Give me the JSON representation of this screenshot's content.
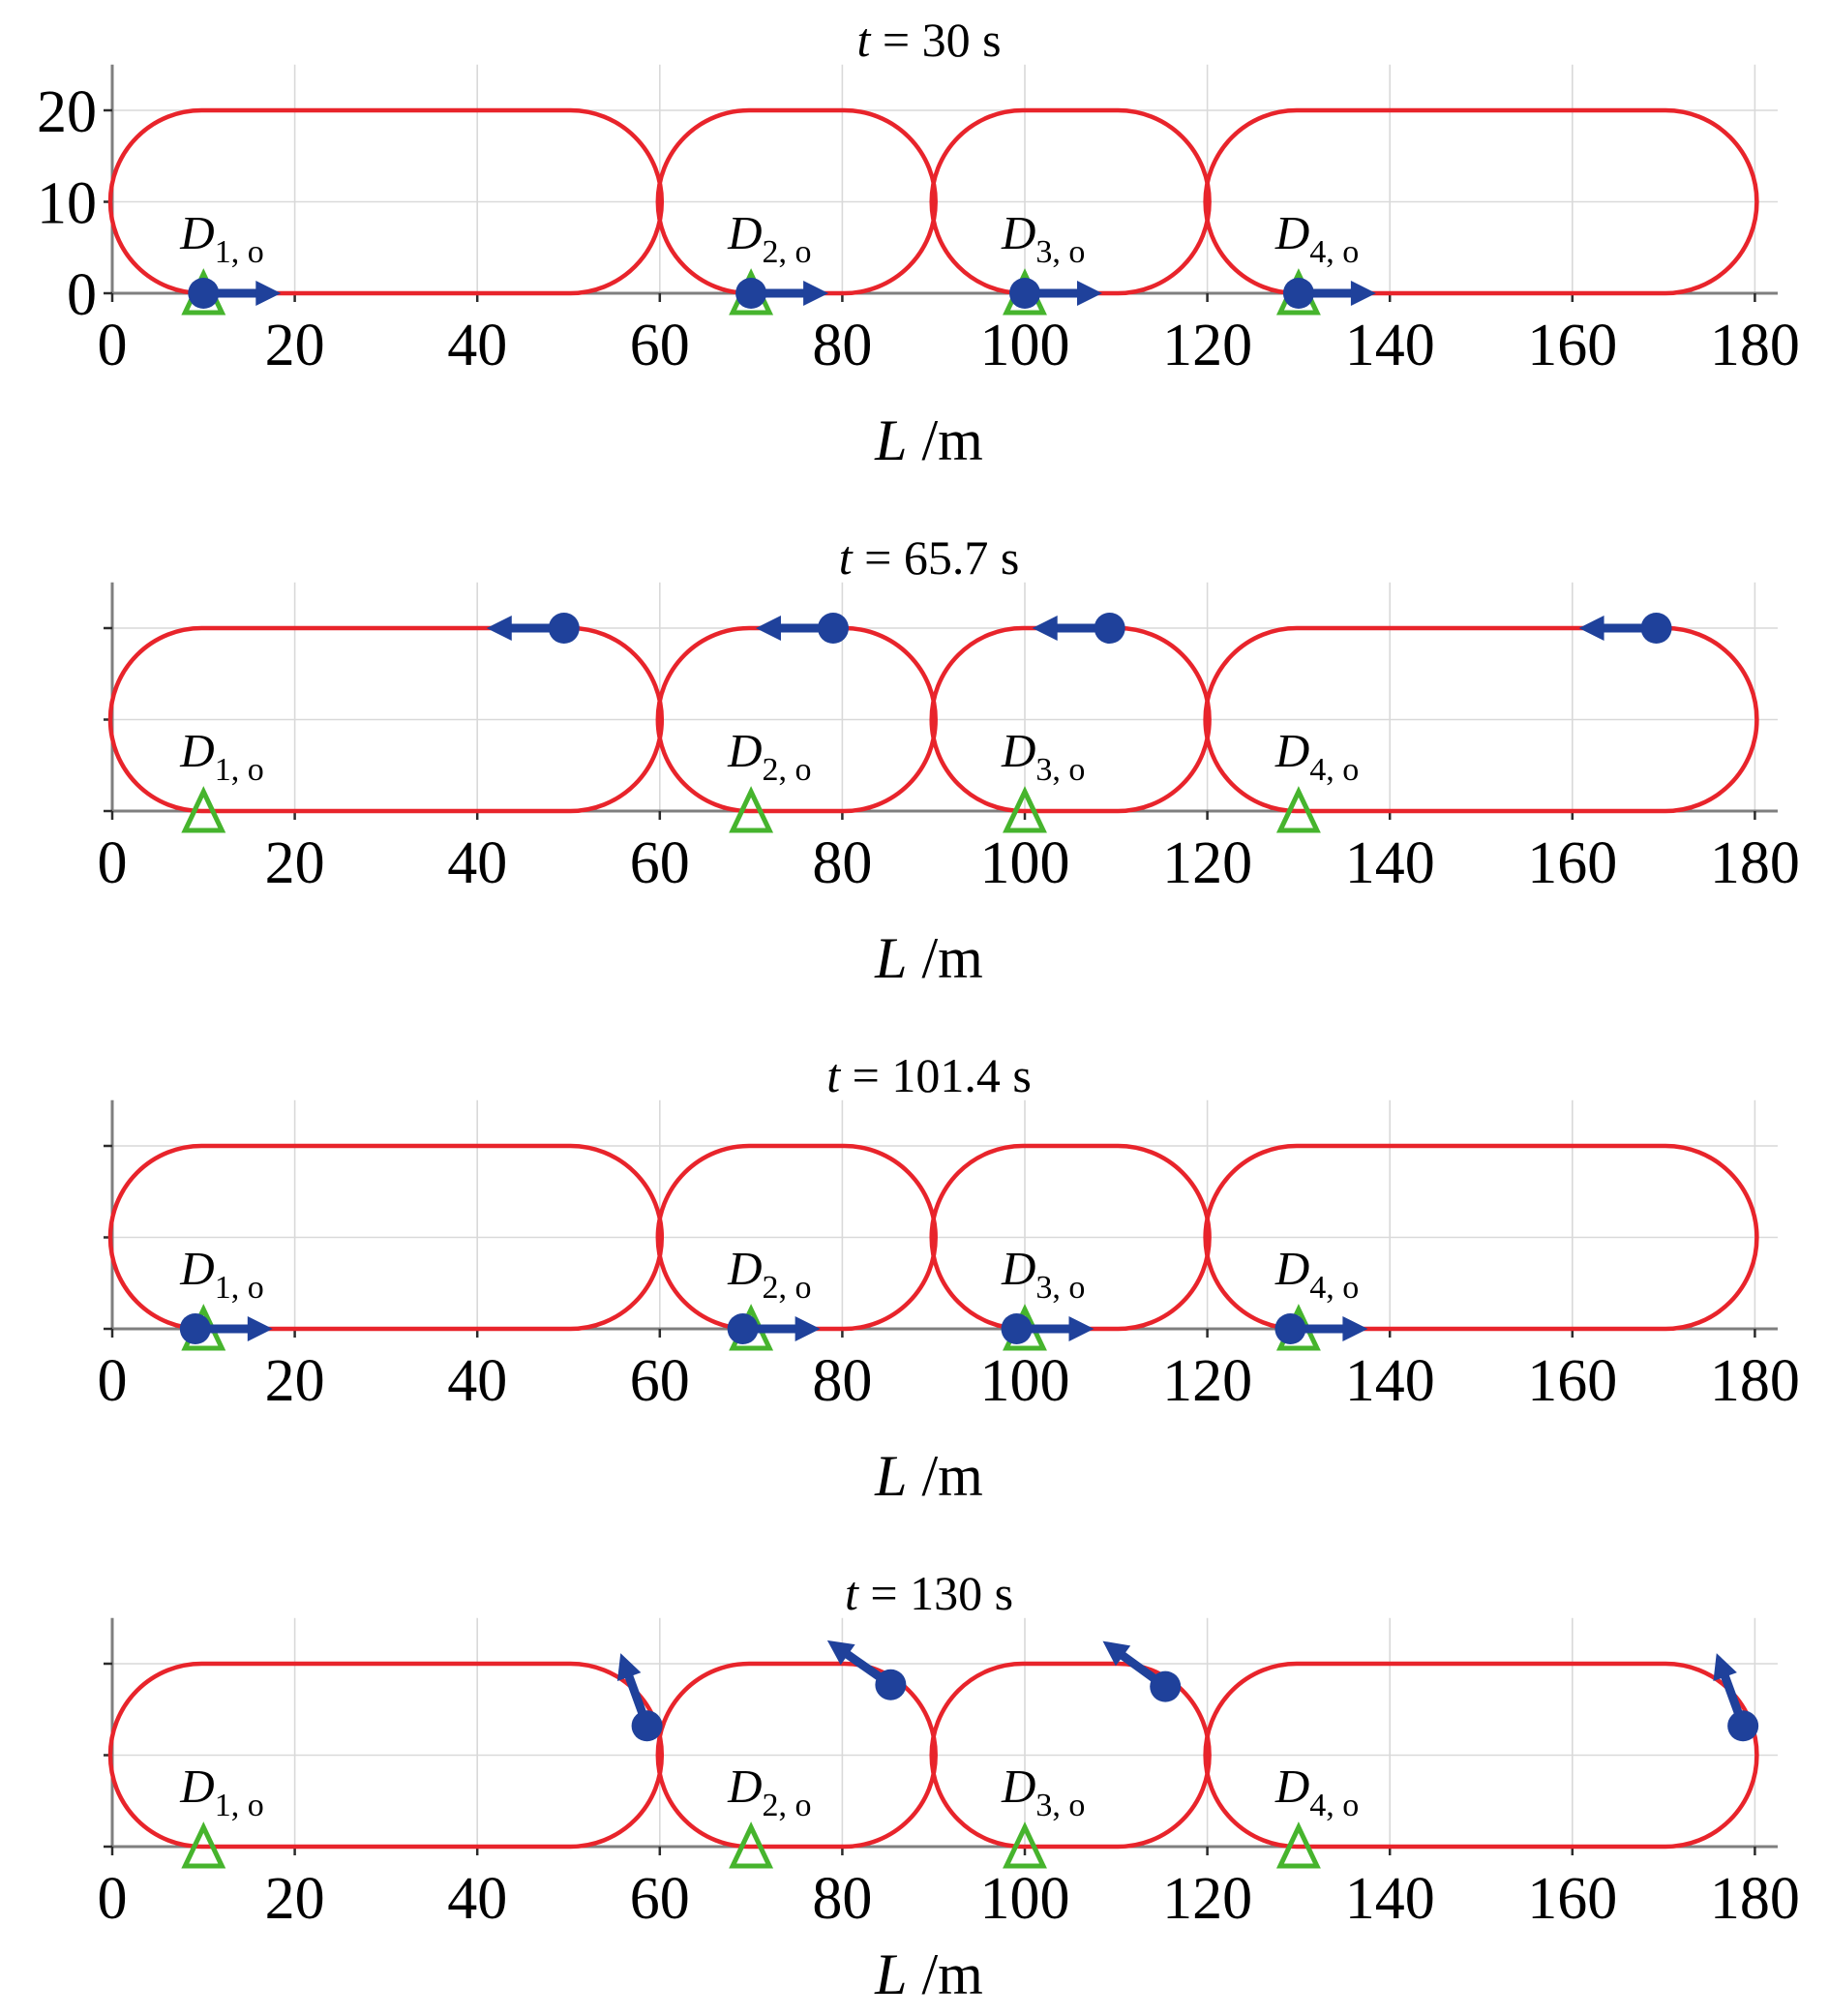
{
  "figure": {
    "background": "#ffffff",
    "description_labels": {
      "time_titles": [
        "t = 30 s",
        "t = 65.7 s",
        "t = 101.4 s",
        "t = 130 s"
      ],
      "axis_label": "L /m"
    }
  },
  "chart_data": {
    "type": "line",
    "layout": {
      "rows": 4,
      "cols": 1,
      "x_min": 0,
      "x_max": 180,
      "x_tick_step": 20,
      "x_ticks": [
        0,
        20,
        40,
        60,
        80,
        100,
        120,
        140,
        160,
        180
      ],
      "y_ticks": [
        0,
        10,
        20
      ],
      "y_max_visible": 25,
      "grid": true,
      "equal_aspect": true
    },
    "colors": {
      "track": "#e8242b",
      "drone": "#1f419b",
      "origin": "#46b42d",
      "grid": "#d9d9d9",
      "spine": "#7f7f7f",
      "tick": "#2b2b2b",
      "text": "#000000",
      "background": "#ffffff"
    },
    "tracks": [
      {
        "x_start": 0,
        "x_end": 60,
        "y_bottom": 0,
        "y_top": 20,
        "end_radius": 10
      },
      {
        "x_start": 60,
        "x_end": 90,
        "y_bottom": 0,
        "y_top": 20,
        "end_radius": 10
      },
      {
        "x_start": 90,
        "x_end": 120,
        "y_bottom": 0,
        "y_top": 20,
        "end_radius": 10
      },
      {
        "x_start": 120,
        "x_end": 180,
        "y_bottom": 0,
        "y_top": 20,
        "end_radius": 10
      }
    ],
    "panels": [
      {
        "title": "t = 30 s",
        "title_symbol": "t",
        "title_rest": " = 30 s",
        "time_s": 30,
        "xlabel": "L /m",
        "xlabel_symbol": "L",
        "xlabel_rest": " /m",
        "show_y_tick_labels": true,
        "origins": [
          {
            "label": "D",
            "subscript": "1, o",
            "x": 10
          },
          {
            "label": "D",
            "subscript": "2, o",
            "x": 70
          },
          {
            "label": "D",
            "subscript": "3, o",
            "x": 100
          },
          {
            "label": "D",
            "subscript": "4, o",
            "x": 130
          }
        ],
        "drones": [
          {
            "id": 1,
            "x": 10,
            "y": 0,
            "heading_deg": 0
          },
          {
            "id": 2,
            "x": 70,
            "y": 0,
            "heading_deg": 0
          },
          {
            "id": 3,
            "x": 100,
            "y": 0,
            "heading_deg": 0
          },
          {
            "id": 4,
            "x": 130,
            "y": 0,
            "heading_deg": 0
          }
        ]
      },
      {
        "title": "t = 65.7 s",
        "title_symbol": "t",
        "title_rest": " = 65.7 s",
        "time_s": 65.7,
        "xlabel": "L /m",
        "xlabel_symbol": "L",
        "xlabel_rest": " /m",
        "show_y_tick_labels": false,
        "origins": [
          {
            "label": "D",
            "subscript": "1, o",
            "x": 10
          },
          {
            "label": "D",
            "subscript": "2, o",
            "x": 70
          },
          {
            "label": "D",
            "subscript": "3, o",
            "x": 100
          },
          {
            "label": "D",
            "subscript": "4, o",
            "x": 130
          }
        ],
        "drones": [
          {
            "id": 1,
            "x": 49.5,
            "y": 20,
            "heading_deg": 180
          },
          {
            "id": 2,
            "x": 79,
            "y": 20,
            "heading_deg": 180
          },
          {
            "id": 3,
            "x": 109.3,
            "y": 20,
            "heading_deg": 180
          },
          {
            "id": 4,
            "x": 169.2,
            "y": 20,
            "heading_deg": 180
          }
        ]
      },
      {
        "title": "t = 101.4 s",
        "title_symbol": "t",
        "title_rest": " = 101.4 s",
        "time_s": 101.4,
        "xlabel": "L /m",
        "xlabel_symbol": "L",
        "xlabel_rest": " /m",
        "show_y_tick_labels": false,
        "origins": [
          {
            "label": "D",
            "subscript": "1, o",
            "x": 10
          },
          {
            "label": "D",
            "subscript": "2, o",
            "x": 70
          },
          {
            "label": "D",
            "subscript": "3, o",
            "x": 100
          },
          {
            "label": "D",
            "subscript": "4, o",
            "x": 130
          }
        ],
        "drones": [
          {
            "id": 1,
            "x": 9.1,
            "y": 0,
            "heading_deg": 0
          },
          {
            "id": 2,
            "x": 69.1,
            "y": 0,
            "heading_deg": 0
          },
          {
            "id": 3,
            "x": 99.1,
            "y": 0,
            "heading_deg": 0
          },
          {
            "id": 4,
            "x": 129.1,
            "y": 0,
            "heading_deg": 0
          }
        ]
      },
      {
        "title": "t = 130 s",
        "title_symbol": "t",
        "title_rest": " = 130 s",
        "time_s": 130,
        "xlabel": "L /m",
        "xlabel_symbol": "L",
        "xlabel_rest": " /m",
        "show_y_tick_labels": false,
        "origins": [
          {
            "label": "D",
            "subscript": "1, o",
            "x": 10
          },
          {
            "label": "D",
            "subscript": "2, o",
            "x": 70
          },
          {
            "label": "D",
            "subscript": "3, o",
            "x": 100
          },
          {
            "label": "D",
            "subscript": "4, o",
            "x": 130
          }
        ],
        "drones": [
          {
            "id": 1,
            "x": 58.6,
            "y": 13.2,
            "heading_deg": 110
          },
          {
            "id": 2,
            "x": 85.3,
            "y": 17.7,
            "heading_deg": 145
          },
          {
            "id": 3,
            "x": 115.4,
            "y": 17.5,
            "heading_deg": 144
          },
          {
            "id": 4,
            "x": 178.7,
            "y": 13.2,
            "heading_deg": 110
          }
        ]
      }
    ]
  }
}
